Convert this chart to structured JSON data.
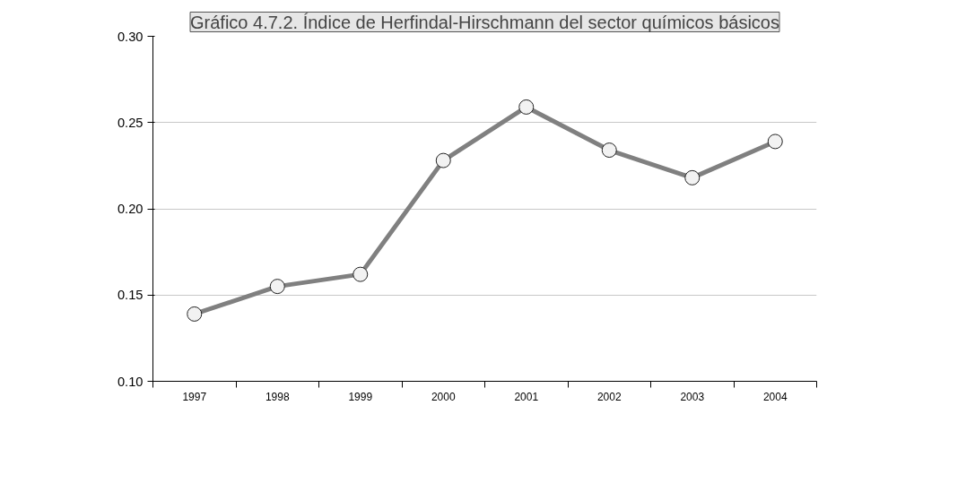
{
  "chart_data": {
    "type": "line",
    "title": "Gráfico 4.7.2. Índice de Herfindal-Hirschmann del sector químicos básicos",
    "categories": [
      "1997",
      "1998",
      "1999",
      "2000",
      "2001",
      "2002",
      "2003",
      "2004"
    ],
    "series": [
      {
        "color": "#808080",
        "values": [
          0.139,
          0.155,
          0.162,
          0.228,
          0.259,
          0.234,
          0.218,
          0.239
        ]
      }
    ],
    "ylim": [
      0.1,
      0.3
    ],
    "yticks": [
      {
        "value": 0.1,
        "label": "0.10"
      },
      {
        "value": 0.15,
        "label": "0.15"
      },
      {
        "value": 0.2,
        "label": "0.20"
      },
      {
        "value": 0.25,
        "label": "0.25"
      },
      {
        "value": 0.3,
        "label": "0.30"
      }
    ],
    "grid": "y",
    "marker": "circle",
    "line_style": "solid"
  }
}
